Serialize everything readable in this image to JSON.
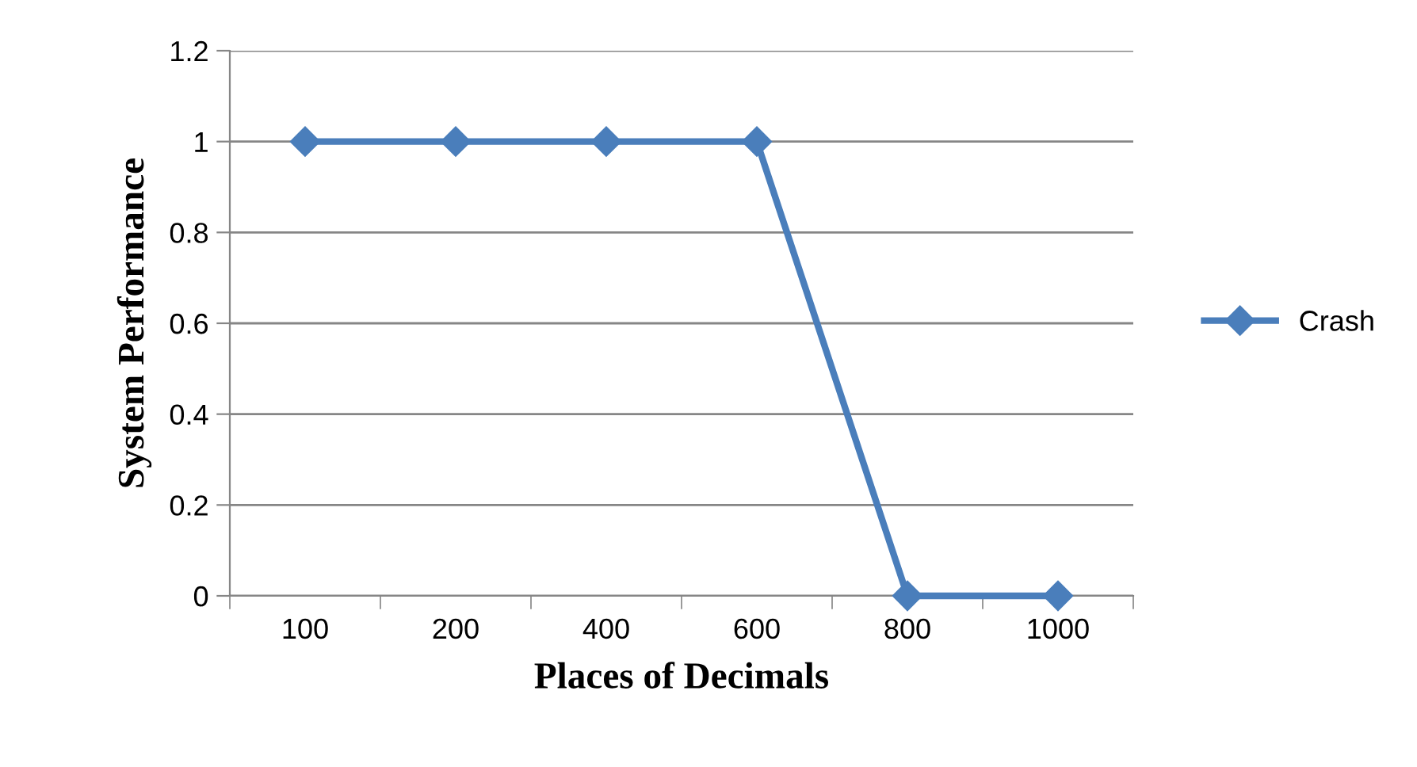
{
  "chart_data": {
    "type": "line",
    "xlabel": "Places of Decimals",
    "ylabel": "System Performance",
    "categories": [
      "100",
      "200",
      "400",
      "600",
      "800",
      "1000"
    ],
    "series": [
      {
        "name": "Crash",
        "color": "#4a7ebb",
        "values": [
          1,
          1,
          1,
          1,
          0,
          0
        ]
      }
    ],
    "ylim": [
      0,
      1.2
    ],
    "yticks": [
      0,
      0.2,
      0.4,
      0.6,
      0.8,
      1,
      1.2
    ],
    "grid": "y",
    "legend": "right",
    "marker": "diamond",
    "line_style": "solid"
  }
}
